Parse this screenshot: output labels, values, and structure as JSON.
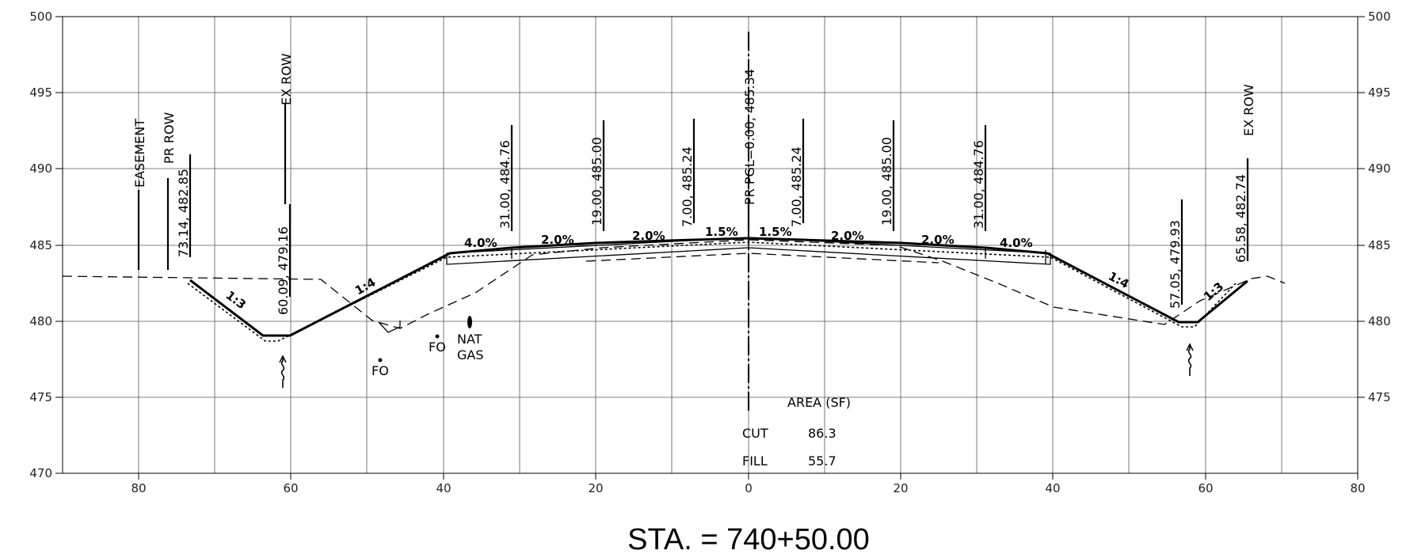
{
  "station": "STA. = 740+50.00",
  "axes": {
    "x_ticks": [
      "80",
      "60",
      "40",
      "20",
      "0",
      "20",
      "40",
      "60",
      "80"
    ],
    "y_ticks": [
      "500",
      "495",
      "490",
      "485",
      "480",
      "475",
      "470"
    ]
  },
  "labels": {
    "easement": "EASEMENT",
    "pr_row": "PR ROW",
    "pr_row_elev": "73.14, 482.85",
    "ex_row_left": "EX ROW",
    "ex_row_left_elev": "60.09, 479.16",
    "l_31": "31.00, 484.76",
    "l_19": "19.00, 485.00",
    "l_7": "7.00, 485.24",
    "center": "PR PGL=0.00, 485.34",
    "r_7": "7.00, 485.24",
    "r_19": "19.00, 485.00",
    "r_31": "31.00, 484.76",
    "r_57": "57.05, 479.93",
    "r_65": "65.58, 482.74",
    "ex_row_right": "EX ROW"
  },
  "slopes": {
    "s1": "4.0%",
    "s2": "2.0%",
    "s3": "2.0%",
    "s4": "1.5%",
    "s5": "1.5%",
    "s6": "2.0%",
    "s7": "2.0%",
    "s8": "4.0%",
    "l13": "1:3",
    "l14": "1:4",
    "r14": "1:4",
    "r13": "1:3"
  },
  "utilities": {
    "fo1": "FO",
    "fo2": "FO",
    "nat": "NAT",
    "gas": "GAS"
  },
  "area": {
    "title": "AREA (SF)",
    "cut_label": "CUT",
    "cut_value": "86.3",
    "fill_label": "FILL",
    "fill_value": "55.7"
  }
}
